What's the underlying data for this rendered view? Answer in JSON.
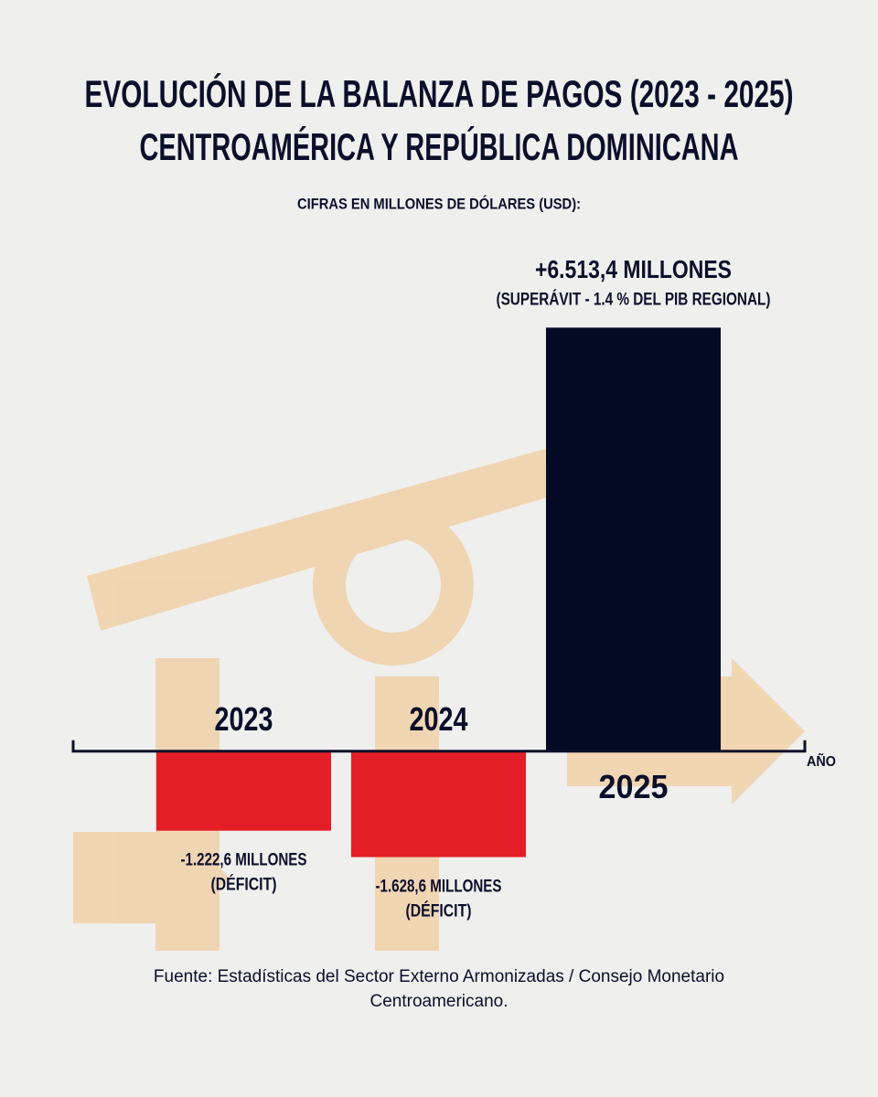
{
  "chart_data": {
    "type": "bar",
    "title": [
      "EVOLUCIÓN DE LA BALANZA DE PAGOS (2023 - 2025)",
      "CENTROAMÉRICA Y REPÚBLICA DOMINICANA"
    ],
    "subtitle": "CIFRAS EN MILLONES DE DÓLARES (USD):",
    "xlabel": "AÑO",
    "categories": [
      "2023",
      "2024",
      "2025"
    ],
    "values": [
      -1222.6,
      -1628.6,
      6513.4
    ],
    "value_labels": [
      "-1.222,6 MILLONES",
      "-1.628,6 MILLONES",
      "+6.513,4 MILLONES"
    ],
    "annotations": [
      "(DÉFICIT)",
      "(DÉFICIT)",
      "(SUPERÁVIT - 1.4 % DEL PIB REGIONAL)"
    ],
    "colors": [
      "#e41e26",
      "#e41e26",
      "#050a24"
    ],
    "ylim": [
      -2000,
      6800
    ],
    "source": "Fuente: Estadísticas del Sector Externo Armonizadas / Consejo Monetario Centroamericano."
  }
}
